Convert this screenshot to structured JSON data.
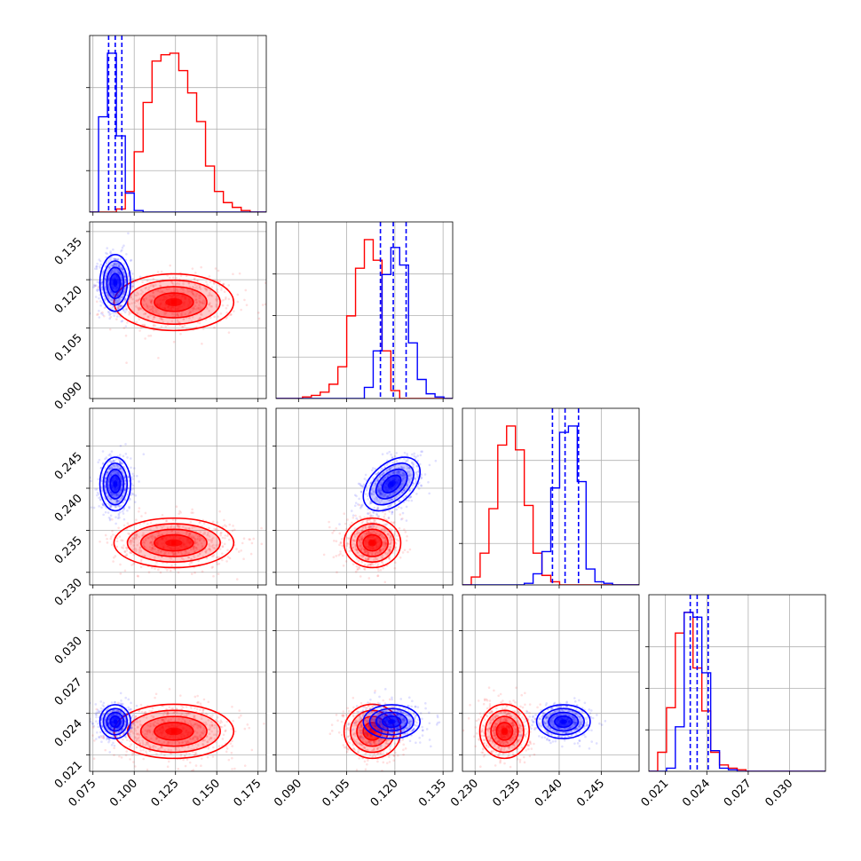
{
  "chart_data": {
    "type": "corner",
    "title": "",
    "colors": {
      "red": "#ff0000",
      "blue": "#0000ff",
      "grid": "#b0b0b0"
    },
    "parameters": [
      {
        "range": [
          0.073,
          0.18
        ],
        "ticks": [
          "0.075",
          "0.100",
          "0.125",
          "0.150",
          "0.175"
        ],
        "tick_values": [
          0.075,
          0.1,
          0.125,
          0.15,
          0.175
        ]
      },
      {
        "range": [
          0.083,
          0.138
        ],
        "ticks": [
          "0.090",
          "0.105",
          "0.120",
          "0.135"
        ],
        "tick_values": [
          0.09,
          0.105,
          0.12,
          0.135
        ]
      },
      {
        "range": [
          0.2285,
          0.2495
        ],
        "ticks": [
          "0.230",
          "0.235",
          "0.240",
          "0.245"
        ],
        "tick_values": [
          0.23,
          0.235,
          0.24,
          0.245
        ]
      },
      {
        "range": [
          0.0198,
          0.0326
        ],
        "ticks": [
          "0.021",
          "0.024",
          "0.027",
          "0.030"
        ],
        "tick_values": [
          0.021,
          0.024,
          0.027,
          0.03
        ]
      }
    ],
    "series": [
      {
        "color": "red",
        "means": [
          0.124,
          0.113,
          0.2335,
          0.0227
        ],
        "sds": [
          0.0148,
          0.0036,
          0.0012,
          0.0008
        ],
        "correlations": {
          "1-0": 0.0,
          "2-0": 0.0,
          "2-1": 0.0,
          "3-0": 0.0,
          "3-1": 0.0,
          "3-2": 0.0
        },
        "histograms": [
          {
            "edges_start": 0.073,
            "bin_width": 0.0054,
            "heights": [
              0,
              0,
              0,
              0.02,
              0.13,
              0.38,
              0.69,
              0.95,
              0.99,
              1.0,
              0.89,
              0.75,
              0.57,
              0.29,
              0.13,
              0.06,
              0.03,
              0.01,
              0,
              0
            ]
          },
          {
            "edges_start": 0.083,
            "bin_width": 0.00275,
            "heights": [
              0,
              0,
              0,
              0.01,
              0.02,
              0.04,
              0.09,
              0.2,
              0.52,
              0.82,
              1.0,
              0.87,
              0.3,
              0.05,
              0,
              0,
              0,
              0,
              0,
              0
            ]
          },
          {
            "edges_start": 0.2285,
            "bin_width": 0.00105,
            "heights": [
              0,
              0.05,
              0.2,
              0.48,
              0.88,
              1.0,
              0.85,
              0.5,
              0.2,
              0.06,
              0.02,
              0,
              0,
              0,
              0,
              0,
              0,
              0,
              0,
              0
            ]
          },
          {
            "edges_start": 0.0198,
            "bin_width": 0.00064,
            "heights": [
              0,
              0.12,
              0.4,
              0.87,
              1.0,
              0.65,
              0.38,
              0.12,
              0.04,
              0.02,
              0.01,
              0,
              0,
              0,
              0,
              0,
              0,
              0,
              0,
              0
            ]
          }
        ]
      },
      {
        "color": "blue",
        "means": [
          0.0885,
          0.119,
          0.2405,
          0.0234
        ],
        "sds": [
          0.0038,
          0.0036,
          0.0013,
          0.0005
        ],
        "correlations": {
          "1-0": 0.0,
          "2-0": 0.0,
          "2-1": 0.45,
          "3-0": 0.0,
          "3-1": 0.0,
          "3-2": 0.0
        },
        "quantiles": [
          [
            0.0845,
            0.0885,
            0.0925
          ],
          [
            0.1155,
            0.1195,
            0.1235
          ],
          [
            0.2392,
            0.2407,
            0.2423
          ],
          [
            0.0228,
            0.0233,
            0.0241
          ]
        ],
        "histograms": [
          {
            "edges_start": 0.073,
            "bin_width": 0.0054,
            "heights": [
              0,
              0.6,
              1.0,
              0.48,
              0.12,
              0.01,
              0,
              0,
              0,
              0,
              0,
              0,
              0,
              0,
              0,
              0,
              0,
              0,
              0,
              0
            ]
          },
          {
            "edges_start": 0.083,
            "bin_width": 0.00275,
            "heights": [
              0,
              0,
              0,
              0,
              0,
              0,
              0,
              0,
              0,
              0,
              0.07,
              0.3,
              0.78,
              0.95,
              0.84,
              0.35,
              0.12,
              0.03,
              0.01,
              0
            ]
          },
          {
            "edges_start": 0.2285,
            "bin_width": 0.00105,
            "heights": [
              0,
              0,
              0,
              0,
              0,
              0,
              0,
              0.01,
              0.07,
              0.21,
              0.61,
              0.96,
              1.0,
              0.65,
              0.1,
              0.02,
              0.01,
              0,
              0,
              0
            ]
          },
          {
            "edges_start": 0.0198,
            "bin_width": 0.00064,
            "heights": [
              0,
              0,
              0.02,
              0.28,
              1.0,
              0.97,
              0.62,
              0.13,
              0.02,
              0.01,
              0,
              0,
              0,
              0,
              0,
              0,
              0,
              0,
              0,
              0
            ]
          }
        ]
      }
    ]
  }
}
